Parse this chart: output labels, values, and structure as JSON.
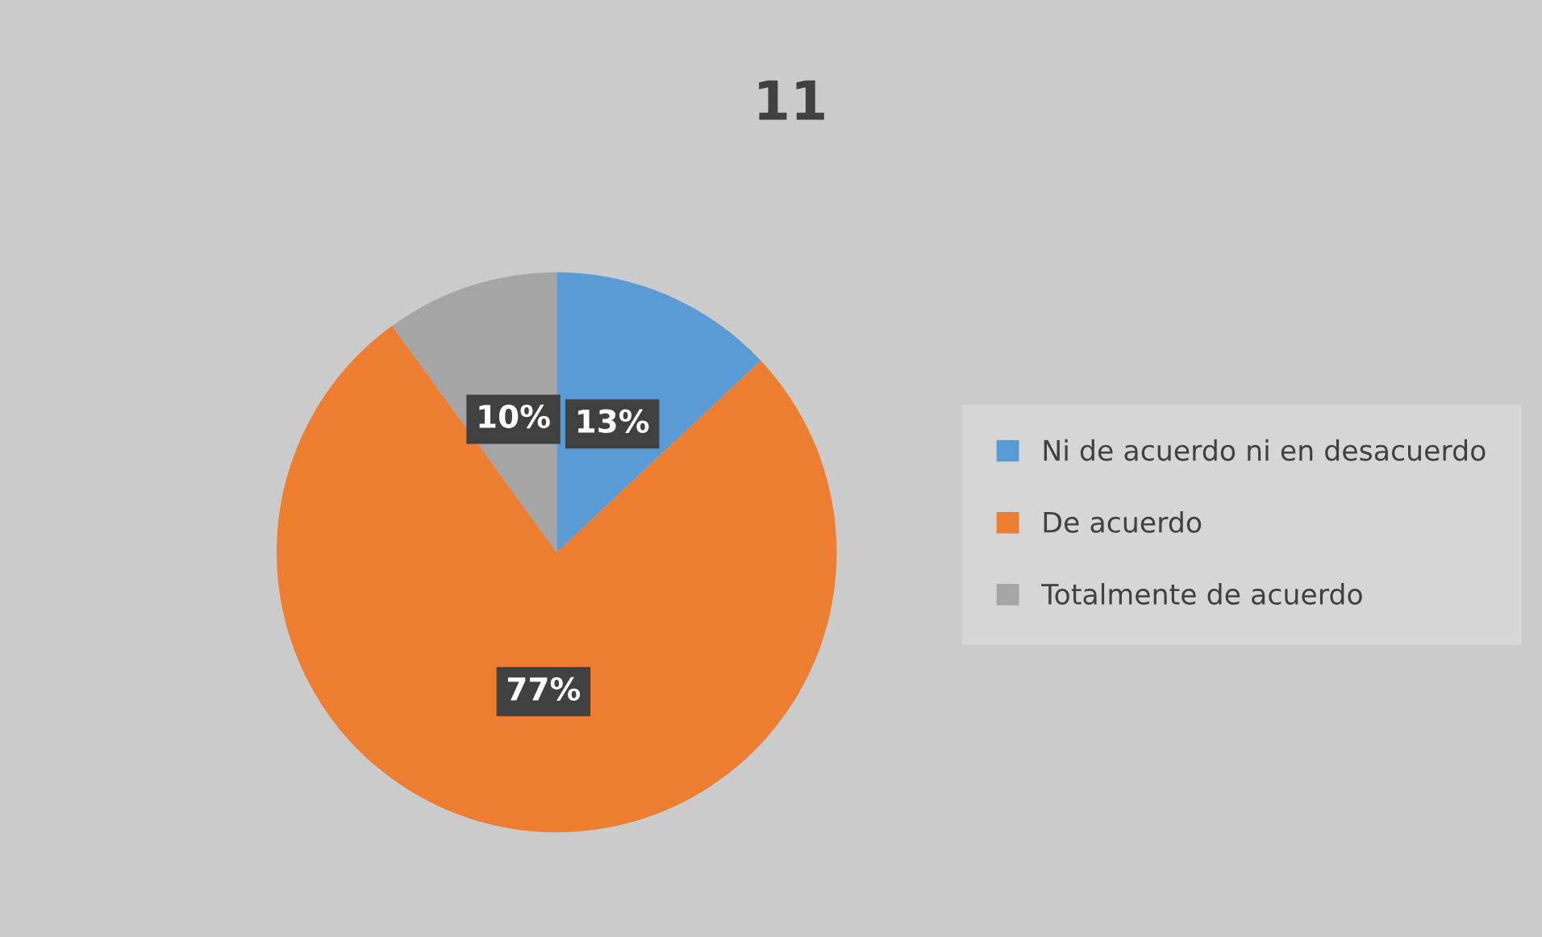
{
  "chart_data": {
    "type": "pie",
    "title": "11",
    "categories": [
      "Ni de acuerdo ni en desacuerdo",
      "De acuerdo",
      "Totalmente de acuerdo"
    ],
    "values": [
      13,
      77,
      10
    ],
    "colors": [
      "#5b9bd5",
      "#ed7d31",
      "#a5a5a5"
    ],
    "value_labels": [
      "13%",
      "77%",
      "10%"
    ],
    "legend": "right"
  }
}
